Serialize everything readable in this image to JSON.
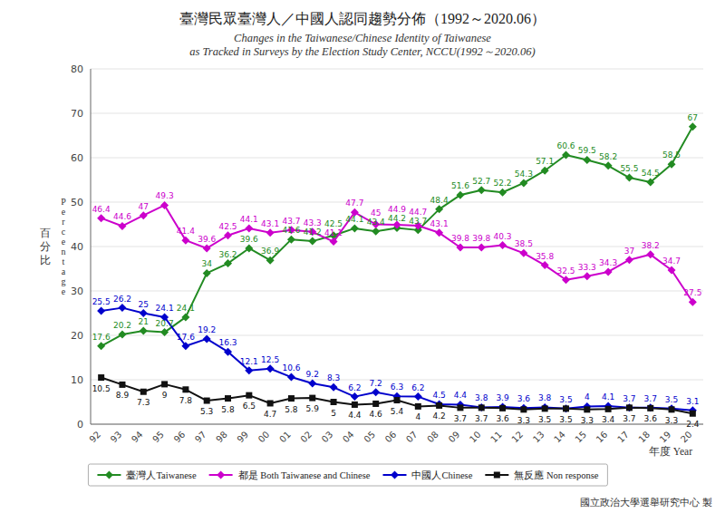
{
  "chart_data": {
    "type": "line",
    "title": "臺灣民眾臺灣人／中國人認同趨勢分佈（1992～2020.06）",
    "subtitle": [
      "Changes in the Taiwanese/Chinese Identity of Taiwanese",
      "as Tracked in Surveys by the Election Study Center, NCCU(1992～2020.06)"
    ],
    "ylabel": [
      "百\n分\n比",
      "P\ne\nr\nc\ne\nn\nt\na\ng\ne"
    ],
    "xlabel": "年度 Year",
    "annotations": [
      "國立政治大學選舉研究中心 製"
    ],
    "categories": [
      "92",
      "93",
      "94",
      "95",
      "96",
      "97",
      "98",
      "99",
      "00",
      "01",
      "02",
      "03",
      "04",
      "05",
      "06",
      "07",
      "08",
      "09",
      "10",
      "11",
      "12",
      "13",
      "14",
      "15",
      "16",
      "17",
      "18",
      "19",
      "20"
    ],
    "series": [
      {
        "name": "臺灣人Taiwanese",
        "color": "#228B22",
        "marker": "diamond",
        "values": [
          17.6,
          20.2,
          21.0,
          20.7,
          24.1,
          34.0,
          36.2,
          39.6,
          36.9,
          41.6,
          41.2,
          42.5,
          44.1,
          43.4,
          44.2,
          43.7,
          48.4,
          51.6,
          52.7,
          52.2,
          54.3,
          57.1,
          60.6,
          59.5,
          58.2,
          55.5,
          54.5,
          58.5,
          67.0
        ]
      },
      {
        "name": "都是 Both Taiwanese and Chinese",
        "color": "#CC00CC",
        "marker": "diamond",
        "values": [
          46.4,
          44.6,
          47.0,
          49.3,
          41.4,
          39.6,
          42.5,
          44.1,
          43.1,
          43.7,
          43.3,
          41.1,
          47.7,
          45.0,
          44.9,
          44.7,
          43.1,
          39.8,
          39.8,
          40.3,
          38.5,
          35.8,
          32.5,
          33.3,
          34.3,
          37.0,
          38.2,
          34.7,
          27.5
        ]
      },
      {
        "name": "中國人Chinese",
        "color": "#0000CC",
        "marker": "diamond",
        "values": [
          25.5,
          26.2,
          25.0,
          24.1,
          17.6,
          19.2,
          16.3,
          12.1,
          12.5,
          10.6,
          9.2,
          8.3,
          6.2,
          7.2,
          6.3,
          6.2,
          4.5,
          4.4,
          3.8,
          3.9,
          3.6,
          3.8,
          3.5,
          4.0,
          4.1,
          3.7,
          3.7,
          3.5,
          3.1
        ]
      },
      {
        "name": "無反應 Non response",
        "color": "#111111",
        "marker": "square",
        "values": [
          10.5,
          8.9,
          7.3,
          9.0,
          7.8,
          5.3,
          5.8,
          6.5,
          4.7,
          5.8,
          5.9,
          5.0,
          4.4,
          4.6,
          5.4,
          4.0,
          4.2,
          3.7,
          3.7,
          3.6,
          3.3,
          3.5,
          3.5,
          3.3,
          3.4,
          3.7,
          3.6,
          3.3,
          2.4
        ]
      }
    ],
    "ylim": [
      0,
      80
    ],
    "yticks": [
      0,
      10,
      20,
      30,
      40,
      50,
      60,
      70,
      80
    ],
    "grid": true,
    "legend": "bottom",
    "data_labels": true
  }
}
